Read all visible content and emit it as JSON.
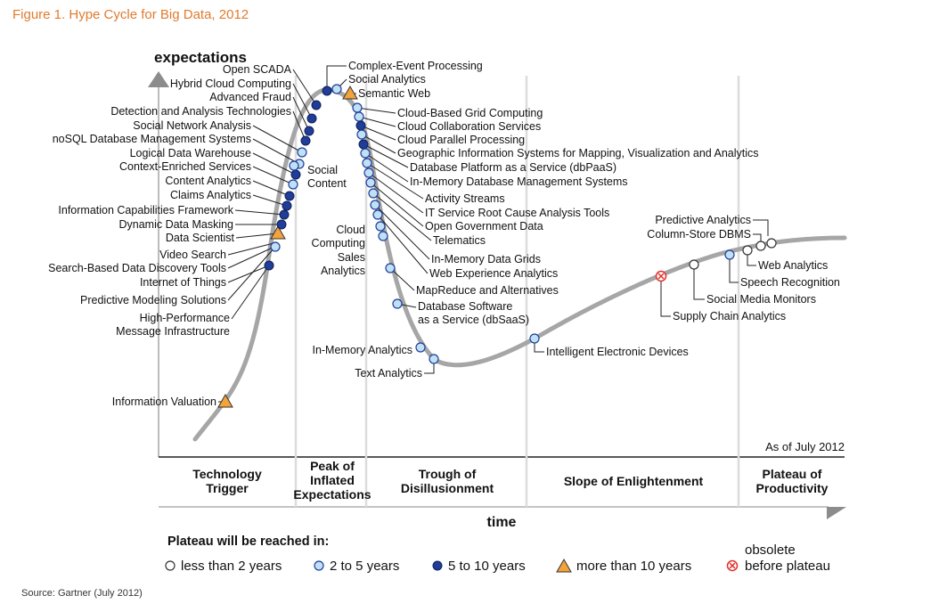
{
  "title": "Figure 1. Hype Cycle for Big Data, 2012",
  "source": "Source: Gartner (July 2012)",
  "axes": {
    "y_label": "expectations",
    "x_label": "time"
  },
  "as_of": "As of July 2012",
  "phases": [
    {
      "lines": [
        "Technology",
        "Trigger"
      ]
    },
    {
      "lines": [
        "Peak of",
        "Inflated",
        "Expectations"
      ]
    },
    {
      "lines": [
        "Trough of",
        "Disillusionment"
      ]
    },
    {
      "lines": [
        "Slope of Enlightenment"
      ]
    },
    {
      "lines": [
        "Plateau of",
        "Productivity"
      ]
    }
  ],
  "legend": {
    "title": "Plateau will be reached in:",
    "items": [
      {
        "label": "less than 2 years",
        "marker": "hollow-circle"
      },
      {
        "label": "2 to 5 years",
        "marker": "light-blue-circle"
      },
      {
        "label": "5 to 10 years",
        "marker": "dark-blue-circle"
      },
      {
        "label": "more than 10 years",
        "marker": "orange-triangle"
      },
      {
        "label_lines": [
          "obsolete",
          "before plateau"
        ],
        "marker": "red-x-circle"
      }
    ]
  },
  "technologies": [
    {
      "name": "Information Valuation",
      "marker": "triangle"
    },
    {
      "name": "High-Performance Message Infrastructure",
      "marker": "dark"
    },
    {
      "name": "Predictive Modeling Solutions",
      "marker": "light"
    },
    {
      "name": "Internet of Things",
      "marker": "dark"
    },
    {
      "name": "Search-Based Data Discovery Tools",
      "marker": "light"
    },
    {
      "name": "Video Search",
      "marker": "light"
    },
    {
      "name": "Data Scientist",
      "marker": "triangle"
    },
    {
      "name": "Dynamic Data Masking",
      "marker": "dark"
    },
    {
      "name": "Information Capabilities Framework",
      "marker": "dark"
    },
    {
      "name": "Claims Analytics",
      "marker": "dark"
    },
    {
      "name": "Content Analytics",
      "marker": "dark"
    },
    {
      "name": "Context-Enriched Services",
      "marker": "light"
    },
    {
      "name": "Logical Data Warehouse",
      "marker": "dark"
    },
    {
      "name": "noSQL Database Management Systems",
      "marker": "light"
    },
    {
      "name": "Social Network Analysis",
      "marker": "light"
    },
    {
      "name": "Detection and Analysis Technologies",
      "marker": "dark"
    },
    {
      "name": "Advanced Fraud",
      "marker": "dark"
    },
    {
      "name": "Hybrid Cloud Computing",
      "marker": "dark"
    },
    {
      "name": "Open SCADA",
      "marker": "dark"
    },
    {
      "name": "Social Content",
      "marker": "light"
    },
    {
      "name": "Cloud Computing",
      "marker": "light"
    },
    {
      "name": "Sales Analytics",
      "marker": "light"
    },
    {
      "name": "Complex-Event Processing",
      "marker": "dark"
    },
    {
      "name": "Social Analytics",
      "marker": "light"
    },
    {
      "name": "Semantic Web",
      "marker": "triangle"
    },
    {
      "name": "Cloud-Based Grid Computing",
      "marker": "light"
    },
    {
      "name": "Cloud Collaboration Services",
      "marker": "light"
    },
    {
      "name": "Cloud Parallel Processing",
      "marker": "dark"
    },
    {
      "name": "Geographic Information Systems for Mapping, Visualization and Analytics",
      "marker": "light"
    },
    {
      "name": "Database Platform as a Service (dbPaaS)",
      "marker": "dark"
    },
    {
      "name": "In-Memory Database Management Systems",
      "marker": "light"
    },
    {
      "name": "Activity Streams",
      "marker": "light"
    },
    {
      "name": "IT Service Root Cause Analysis Tools",
      "marker": "light"
    },
    {
      "name": "Open Government Data",
      "marker": "light"
    },
    {
      "name": "Telematics",
      "marker": "light"
    },
    {
      "name": "In-Memory Data Grids",
      "marker": "light"
    },
    {
      "name": "Web Experience Analytics",
      "marker": "light"
    },
    {
      "name": "MapReduce and Alternatives",
      "marker": "light"
    },
    {
      "name": "Database Software as a Service (dbSaaS)",
      "marker": "light"
    },
    {
      "name": "In-Memory Analytics",
      "marker": "light"
    },
    {
      "name": "Text Analytics",
      "marker": "light"
    },
    {
      "name": "Intelligent Electronic Devices",
      "marker": "light"
    },
    {
      "name": "Supply Chain Analytics",
      "marker": "obsolete"
    },
    {
      "name": "Social Media Monitors",
      "marker": "hollow"
    },
    {
      "name": "Predictive Analytics",
      "marker": "light"
    },
    {
      "name": "Column-Store DBMS",
      "marker": "hollow"
    },
    {
      "name": "Web Analytics",
      "marker": "hollow"
    },
    {
      "name": "Speech Recognition",
      "marker": "hollow"
    }
  ],
  "colors": {
    "curve": "#a6a6a6",
    "title": "#e07b2e",
    "dark_blue": "#1f3d99",
    "light_blue": "#bfe0f5",
    "triangle": "#f2a33a",
    "obsolete": "#e0302a"
  }
}
